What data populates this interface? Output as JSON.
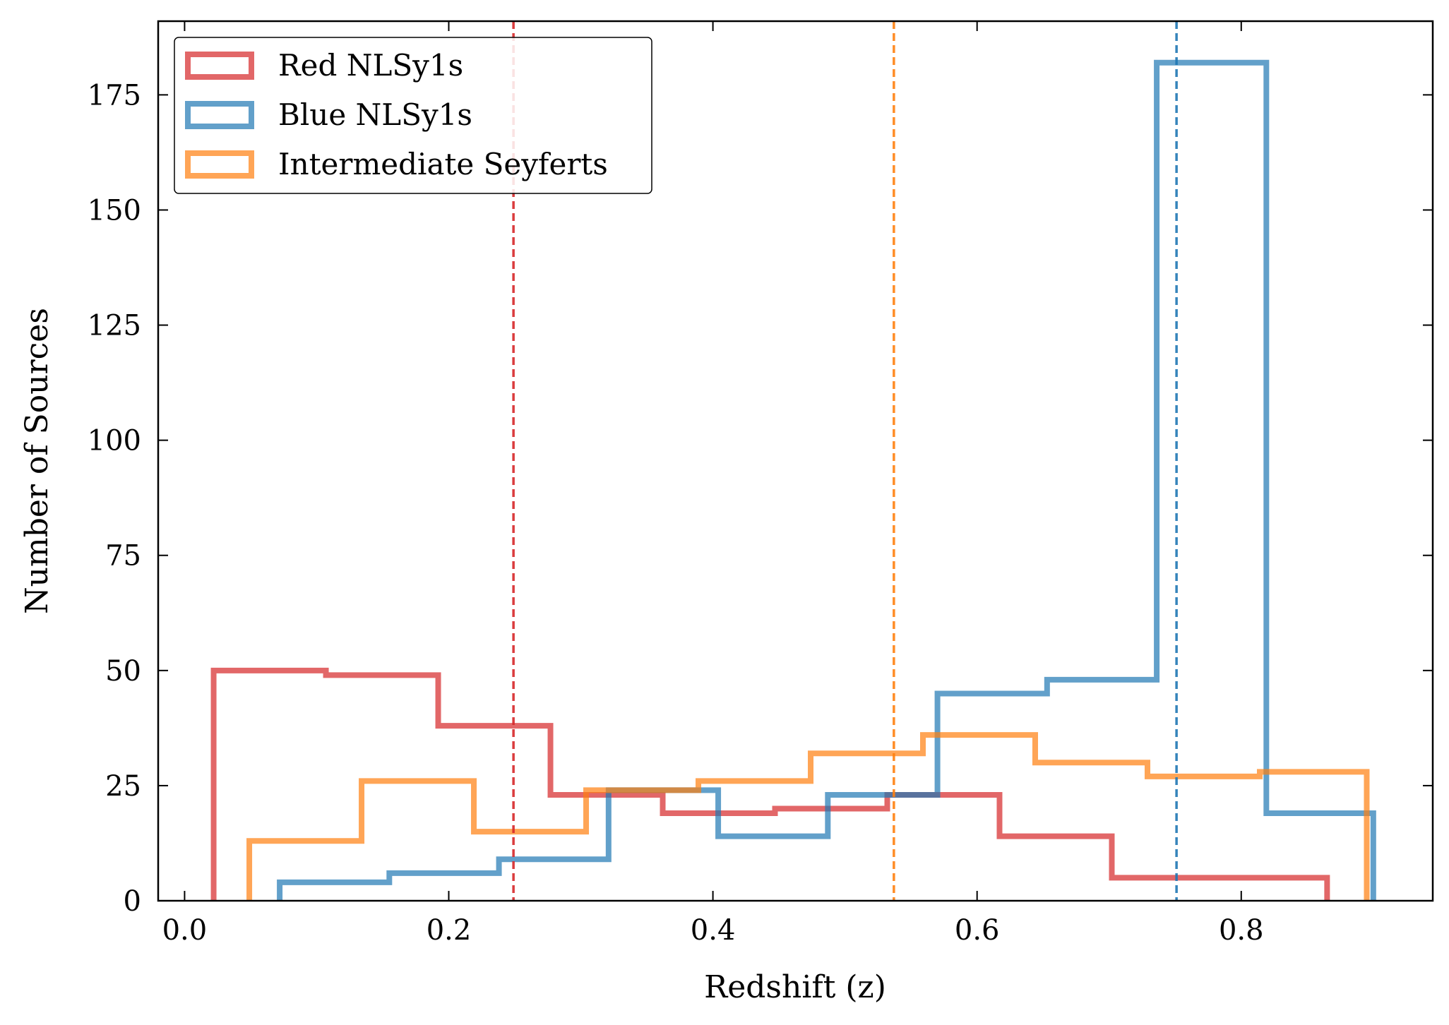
{
  "chart_data": {
    "type": "histogram",
    "title": "",
    "xlabel": "Redshift (z)",
    "ylabel": "Number of Sources",
    "xlim": [
      -0.02,
      0.945
    ],
    "ylim": [
      0,
      191
    ],
    "xticks": [
      0.0,
      0.2,
      0.4,
      0.6,
      0.8
    ],
    "xtick_labels": [
      "0.0",
      "0.2",
      "0.4",
      "0.6",
      "0.8"
    ],
    "yticks": [
      0,
      25,
      50,
      75,
      100,
      125,
      150,
      175
    ],
    "ytick_labels": [
      "0",
      "25",
      "50",
      "75",
      "100",
      "125",
      "150",
      "175"
    ],
    "grid": false,
    "legend_position": "top-left",
    "series": [
      {
        "name": "Red NLSy1s",
        "color": "#d62728",
        "style": "step",
        "bin_edges": [
          0.022,
          0.107,
          0.192,
          0.277,
          0.362,
          0.447,
          0.532,
          0.617,
          0.702,
          0.787,
          0.865
        ],
        "counts": [
          50,
          49,
          38,
          23,
          19,
          20,
          23,
          14,
          5,
          5
        ],
        "mean_line": 0.249
      },
      {
        "name": "Blue NLSy1s",
        "color": "#1f77b4",
        "style": "step",
        "bin_edges": [
          0.072,
          0.155,
          0.238,
          0.321,
          0.404,
          0.487,
          0.57,
          0.653,
          0.736,
          0.819,
          0.9
        ],
        "counts": [
          4,
          6,
          9,
          24,
          14,
          23,
          45,
          48,
          182,
          19
        ],
        "mean_line": 0.751
      },
      {
        "name": "Intermediate Seyferts",
        "color": "#ff7f0e",
        "style": "step",
        "bin_edges": [
          0.049,
          0.134,
          0.219,
          0.304,
          0.389,
          0.474,
          0.559,
          0.644,
          0.729,
          0.814,
          0.895
        ],
        "counts": [
          13,
          26,
          15,
          24,
          26,
          32,
          36,
          30,
          27,
          28
        ],
        "mean_line": 0.537
      }
    ]
  }
}
